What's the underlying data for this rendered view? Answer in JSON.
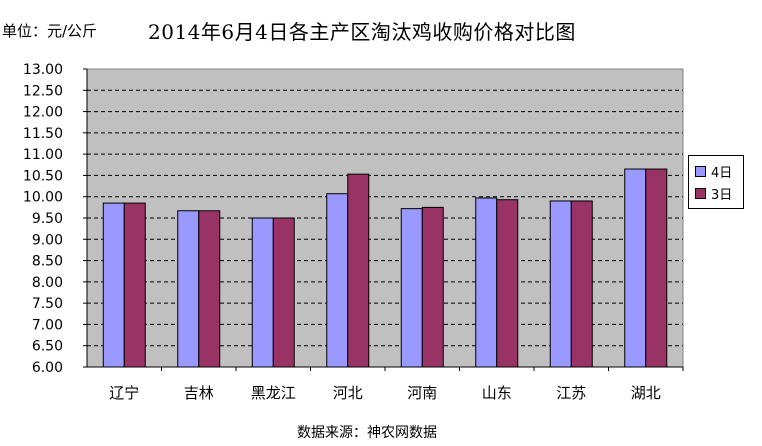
{
  "header": {
    "unit_label": "单位：元/公斤",
    "title": "2014年6月4日各主产区淘汰鸡收购价格对比图"
  },
  "footer": {
    "source": "数据来源：神农网数据"
  },
  "colors": {
    "series_4": "#9999ff",
    "series_3": "#993366",
    "plot_bg": "#c0c0c0"
  },
  "chart_data": {
    "type": "bar",
    "title": "2014年6月4日各主产区淘汰鸡收购价格对比图",
    "ylabel": "单位：元/公斤",
    "xlabel": "",
    "categories": [
      "辽宁",
      "吉林",
      "黑龙江",
      "河北",
      "河南",
      "山东",
      "江苏",
      "湖北"
    ],
    "series": [
      {
        "name": "4日",
        "color": "#9999ff",
        "values": [
          9.85,
          9.67,
          9.5,
          10.07,
          9.72,
          9.97,
          9.9,
          10.65
        ]
      },
      {
        "name": "3日",
        "color": "#993366",
        "values": [
          9.85,
          9.67,
          9.5,
          10.53,
          9.75,
          9.93,
          9.9,
          10.65
        ]
      }
    ],
    "ylim": [
      6.0,
      13.0
    ],
    "yticks": [
      "6.00",
      "6.50",
      "7.00",
      "7.50",
      "8.00",
      "8.50",
      "9.00",
      "9.50",
      "10.00",
      "10.50",
      "11.00",
      "11.50",
      "12.00",
      "12.50",
      "13.00"
    ],
    "grid": true,
    "legend_position": "right"
  }
}
